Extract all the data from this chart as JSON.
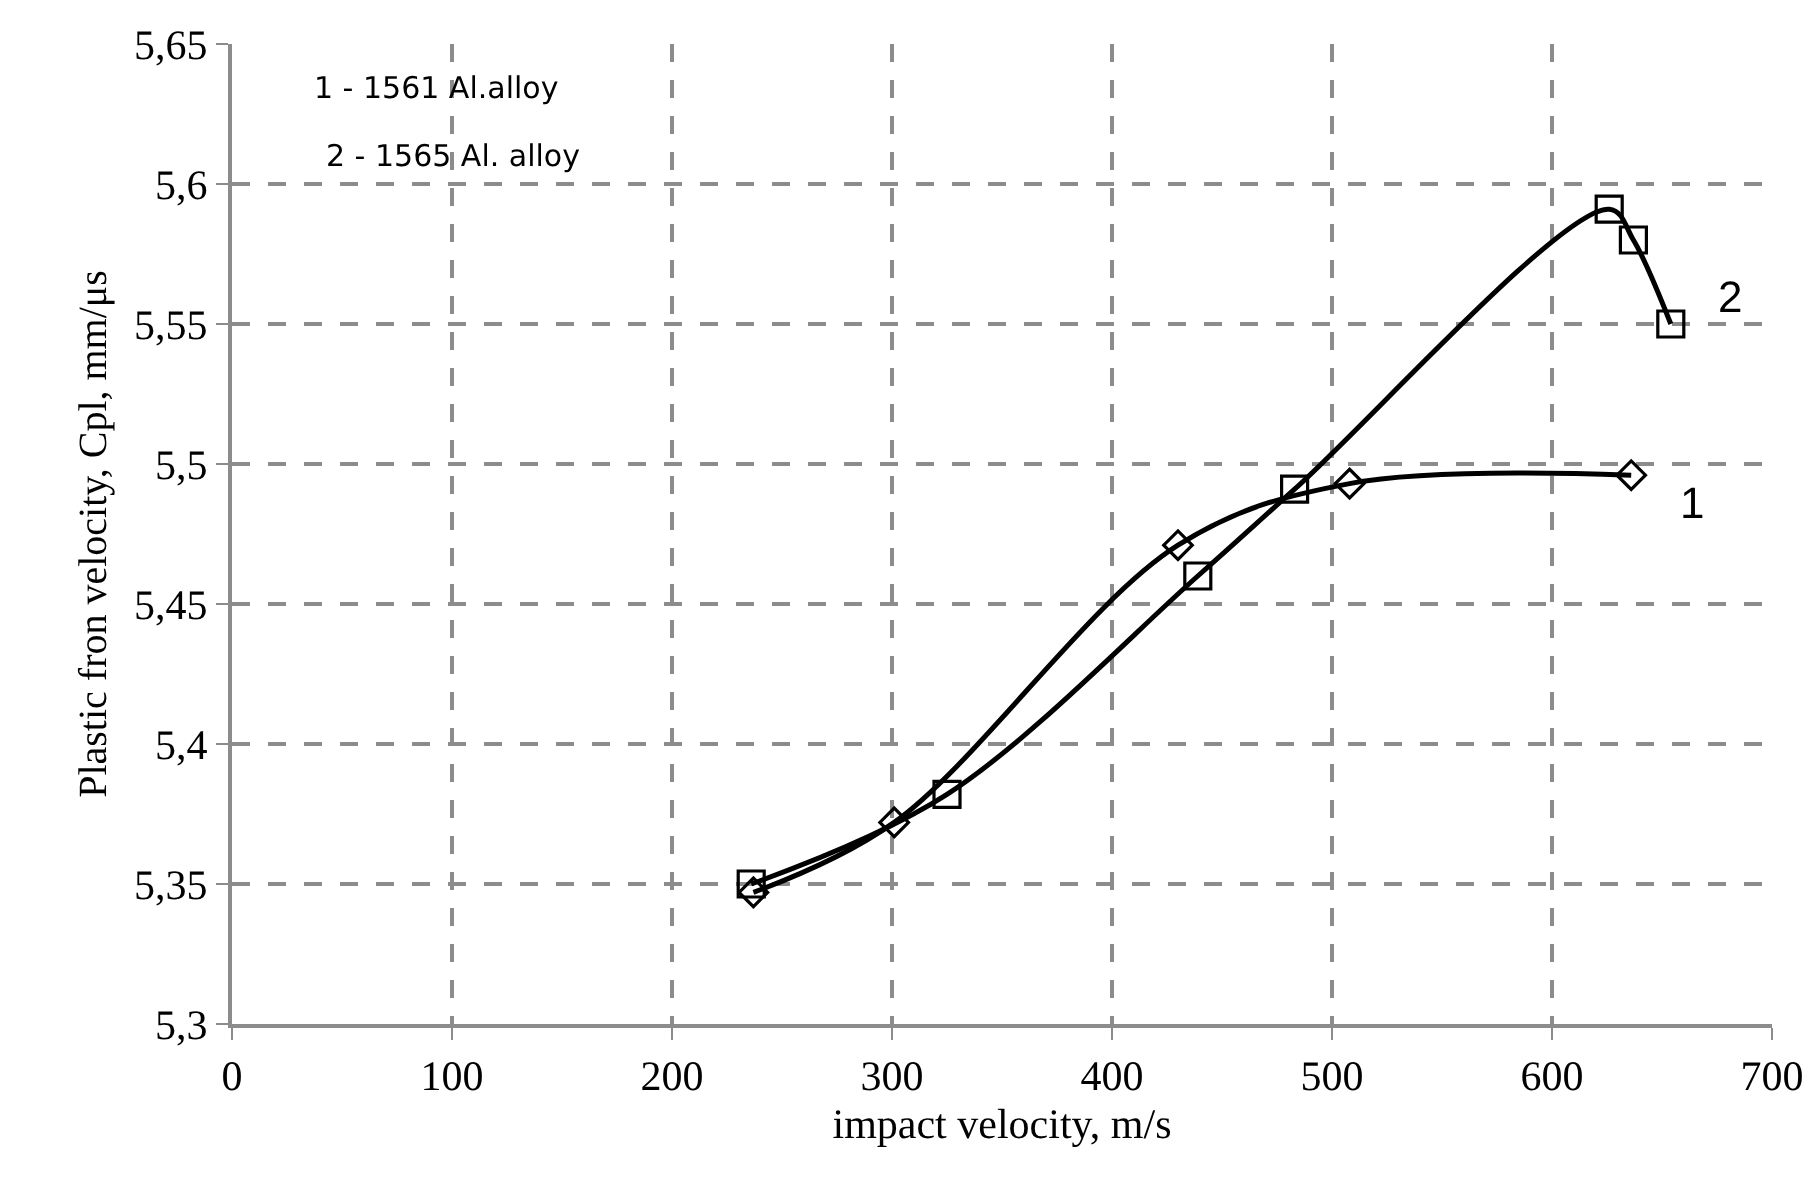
{
  "chart_data": {
    "type": "line",
    "xlabel": "impact velocity, m/s",
    "ylabel": "Plastic fron velocity, Cpl, mm/μs",
    "annotations": [
      "1 - 1561 Al.alloy",
      "2 - 1565 Al. alloy"
    ],
    "series": [
      {
        "name": "1",
        "color": "#000000",
        "marker": "diamond",
        "x": [
          237,
          301,
          430,
          508,
          636
        ],
        "values": [
          5.347,
          5.372,
          5.471,
          5.493,
          5.496
        ]
      },
      {
        "name": "2",
        "color": "#000000",
        "marker": "square",
        "x": [
          236,
          325,
          439,
          483,
          626,
          637,
          654
        ],
        "values": [
          5.35,
          5.382,
          5.46,
          5.491,
          5.591,
          5.58,
          5.55
        ]
      }
    ],
    "xlim": [
      0,
      700
    ],
    "xticks": [
      0,
      100,
      200,
      300,
      400,
      500,
      600,
      700
    ],
    "ylim": [
      5.3,
      5.65
    ],
    "yticks": [
      {
        "value": 5.3,
        "label": "5,3"
      },
      {
        "value": 5.35,
        "label": "5,35"
      },
      {
        "value": 5.4,
        "label": "5,4"
      },
      {
        "value": 5.45,
        "label": "5,45"
      },
      {
        "value": 5.5,
        "label": "5,5"
      },
      {
        "value": 5.55,
        "label": "5,55"
      },
      {
        "value": 5.6,
        "label": "5,6"
      },
      {
        "value": 5.65,
        "label": "5,65"
      }
    ],
    "grid": true,
    "legend": false,
    "line_style": "solid"
  }
}
